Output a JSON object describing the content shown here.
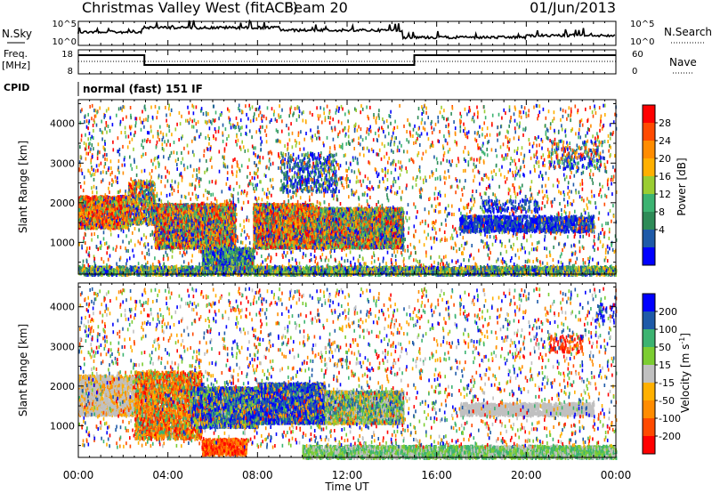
{
  "header": {
    "station": "Christmas Valley West (fitACF)",
    "beam": "Beam 20",
    "date": "01/Jun/2013"
  },
  "top_panels": {
    "nsky_label": "N.Sky",
    "nsky_ticks": [
      "10^5",
      "10^0"
    ],
    "nsearch_label": "N.Search",
    "nsearch_ticks": [
      "10^5",
      "10^0"
    ],
    "freq_label_line1": "Freq.",
    "freq_label_line2": "[MHz]",
    "freq_ticks": [
      "18",
      "8"
    ],
    "nave_label": "Nave",
    "nave_ticks": [
      "60",
      "0"
    ],
    "cpid_label": "CPID",
    "cpid_text": "normal (fast) 151 IF"
  },
  "chart_data": [
    {
      "type": "heatmap",
      "panel": "power",
      "ylabel": "Slant Range [km]",
      "yticks": [
        1000,
        2000,
        3000,
        4000
      ],
      "ylim": [
        200,
        4600
      ],
      "xlim": [
        0,
        24
      ],
      "colorbar_label": "Power [dB]",
      "colorbar_ticks": [
        "28",
        "24",
        "20",
        "16",
        "12",
        "8",
        "4"
      ],
      "colorbar_colors": [
        "#ff0000",
        "#ff4a00",
        "#ff8c00",
        "#ffb000",
        "#9acd32",
        "#3cb371",
        "#2e8b57",
        "#1e5aa8",
        "#0000ff"
      ]
    },
    {
      "type": "heatmap",
      "panel": "velocity",
      "ylabel": "Slant Range [km]",
      "yticks": [
        1000,
        2000,
        3000,
        4000
      ],
      "ylim": [
        200,
        4600
      ],
      "xlim": [
        0,
        24
      ],
      "xlabel": "Time UT",
      "xticks": [
        "00:00",
        "04:00",
        "08:00",
        "12:00",
        "16:00",
        "20:00",
        "00:00"
      ],
      "colorbar_label": "Velocity [m s",
      "colorbar_label_sup": "-1",
      "colorbar_label_end": "]",
      "colorbar_ticks": [
        "200",
        "100",
        "50",
        "15",
        "-15",
        "-50",
        "-100",
        "-200"
      ],
      "colorbar_colors": [
        "#0000ff",
        "#1e5aa8",
        "#3cb371",
        "#7ccd32",
        "#c0c0c0",
        "#ffb000",
        "#ff8c00",
        "#ff4a00",
        "#ff0000"
      ]
    }
  ]
}
